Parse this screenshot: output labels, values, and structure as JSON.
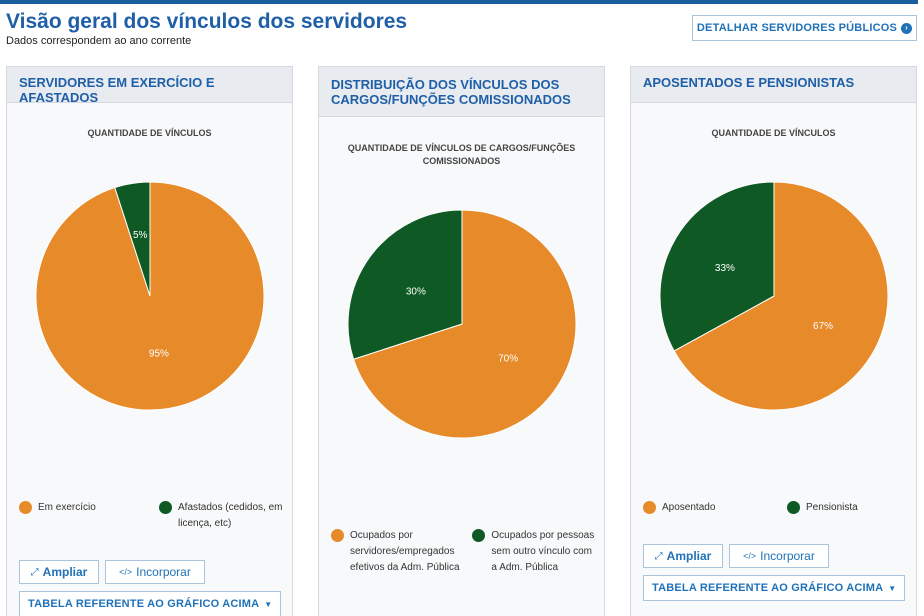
{
  "header": {
    "title": "Visão geral dos vínculos dos servidores",
    "subtitle": "Dados correspondem ao ano corrente",
    "detail_button": "DETALHAR SERVIDORES PÚBLICOS"
  },
  "panels": [
    {
      "title": "SERVIDORES EM EXERCÍCIO E AFASTADOS",
      "chart_title": "QUANTIDADE DE VÍNCULOS",
      "legend": [
        "Em exercício",
        "Afastados (cedidos, em licença, etc)"
      ],
      "buttons": {
        "expand": "Ampliar",
        "embed": "Incorporar",
        "table": "TABELA REFERENTE AO GRÁFICO ACIMA"
      }
    },
    {
      "title": "DISTRIBUIÇÃO DOS VÍNCULOS DOS CARGOS/FUNÇÕES COMISSIONADOS",
      "chart_title": "QUANTIDADE DE VÍNCULOS DE CARGOS/FUNÇÕES COMISSIONADOS",
      "legend": [
        "Ocupados por servidores/empregados efetivos da Adm. Pública",
        "Ocupados por pessoas sem outro vínculo com a Adm. Pública"
      ]
    },
    {
      "title": "APOSENTADOS E PENSIONISTAS",
      "chart_title": "QUANTIDADE DE VÍNCULOS",
      "legend": [
        "Aposentado",
        "Pensionista"
      ],
      "buttons": {
        "expand": "Ampliar",
        "embed": "Incorporar",
        "table": "TABELA REFERENTE AO GRÁFICO ACIMA"
      }
    }
  ],
  "colors": {
    "orange": "#e68a2a",
    "green": "#0f5a24",
    "brand_blue": "#1f5fa8",
    "link_blue": "#1f71b8"
  },
  "icons": {
    "expand": "expand-arrows-icon",
    "embed": "code-icon",
    "caret": "caret-down-icon",
    "detail": "chevron-circle-right-icon"
  },
  "chart_data": [
    {
      "type": "pie",
      "title": "QUANTIDADE DE VÍNCULOS",
      "categories": [
        "Em exercício",
        "Afastados (cedidos, em licença, etc)"
      ],
      "values": [
        95,
        5
      ],
      "labels": [
        "95%",
        "5%"
      ],
      "colors": [
        "#e68a2a",
        "#0f5a24"
      ],
      "legend": "bottom"
    },
    {
      "type": "pie",
      "title": "QUANTIDADE DE VÍNCULOS DE CARGOS/FUNÇÕES COMISSIONADOS",
      "categories": [
        "Ocupados por servidores/empregados efetivos da Adm. Pública",
        "Ocupados por pessoas sem outro vínculo com a Adm. Pública"
      ],
      "values": [
        70,
        30
      ],
      "labels": [
        "70%",
        "30%"
      ],
      "colors": [
        "#e68a2a",
        "#0f5a24"
      ],
      "legend": "bottom"
    },
    {
      "type": "pie",
      "title": "QUANTIDADE DE VÍNCULOS",
      "categories": [
        "Aposentado",
        "Pensionista"
      ],
      "values": [
        67,
        33
      ],
      "labels": [
        "67%",
        "33%"
      ],
      "colors": [
        "#e68a2a",
        "#0f5a24"
      ],
      "legend": "bottom"
    }
  ]
}
